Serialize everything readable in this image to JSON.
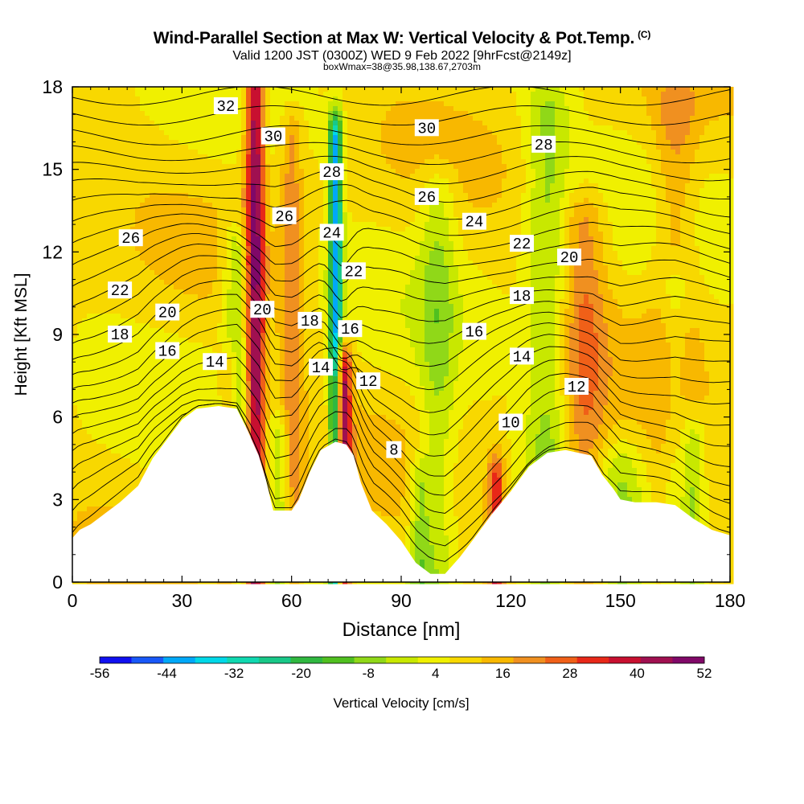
{
  "header": {
    "title": "Wind-Parallel Section at Max W: Vertical Velocity & Pot.Temp.",
    "copyright": "(C)",
    "valid_line": "Valid 1200 JST (0300Z) WED 9 Feb 2022 [9hrFcst@2149z]",
    "box_line": "boxWmax=38@35.98,138.67,2703m"
  },
  "chart_data": {
    "type": "heatmap",
    "xlabel": "Distance [nm]",
    "ylabel": "Height [Kft MSL]",
    "xlim": [
      0,
      180
    ],
    "ylim": [
      0,
      18
    ],
    "xticks": [
      0,
      30,
      60,
      90,
      120,
      150,
      180
    ],
    "yticks": [
      0,
      3,
      6,
      9,
      12,
      15,
      18
    ],
    "colorbar": {
      "label": "Vertical Velocity [cm/s]",
      "ticks": [
        -56,
        -44,
        -32,
        -20,
        -8,
        4,
        16,
        28,
        40,
        52
      ],
      "colors": [
        "#1010f0",
        "#1858f8",
        "#00a8f8",
        "#00d8e8",
        "#10d8b0",
        "#18c888",
        "#30b840",
        "#50c020",
        "#90d818",
        "#c8e800",
        "#f0f000",
        "#f8d800",
        "#f8b800",
        "#f09020",
        "#f06018",
        "#e82818",
        "#c81030",
        "#a01050",
        "#800868"
      ]
    },
    "terrain": [
      [
        0,
        1.6
      ],
      [
        2,
        1.9
      ],
      [
        5,
        2.1
      ],
      [
        9,
        2.5
      ],
      [
        13,
        2.9
      ],
      [
        18,
        3.5
      ],
      [
        22,
        4.5
      ],
      [
        26,
        5.2
      ],
      [
        30,
        5.9
      ],
      [
        34,
        6.3
      ],
      [
        40,
        6.4
      ],
      [
        45,
        6.3
      ],
      [
        48,
        5.5
      ],
      [
        51,
        4.6
      ],
      [
        53,
        3.7
      ],
      [
        55,
        2.6
      ],
      [
        60,
        2.6
      ],
      [
        62,
        3.0
      ],
      [
        65,
        4.0
      ],
      [
        68,
        4.8
      ],
      [
        72,
        5.1
      ],
      [
        75,
        5.0
      ],
      [
        77,
        4.6
      ],
      [
        79,
        3.6
      ],
      [
        82,
        2.6
      ],
      [
        86,
        2.1
      ],
      [
        90,
        1.5
      ],
      [
        94,
        0.7
      ],
      [
        98,
        0.3
      ],
      [
        102,
        0.3
      ],
      [
        106,
        0.9
      ],
      [
        110,
        1.6
      ],
      [
        115,
        2.5
      ],
      [
        120,
        3.3
      ],
      [
        125,
        4.2
      ],
      [
        130,
        4.7
      ],
      [
        135,
        4.8
      ],
      [
        142,
        4.6
      ],
      [
        145,
        3.9
      ],
      [
        148,
        3.4
      ],
      [
        150,
        3.0
      ],
      [
        154,
        2.9
      ],
      [
        160,
        2.9
      ],
      [
        165,
        2.8
      ],
      [
        170,
        2.3
      ],
      [
        175,
        1.9
      ],
      [
        180,
        1.7
      ]
    ],
    "updrafts": [
      {
        "x": 50,
        "h": 18,
        "w": 2.6,
        "v": 40
      },
      {
        "x": 74,
        "h": 7.5,
        "w": 2.2,
        "v": 40
      },
      {
        "x": 116,
        "h": 3.5,
        "w": 2.2,
        "v": 28
      },
      {
        "x": 43,
        "h": 7.5,
        "w": 3,
        "v": 16
      },
      {
        "x": 60,
        "h": 16,
        "w": 3,
        "v": 14
      },
      {
        "x": 140,
        "h": 13,
        "w": 6,
        "v": 14
      },
      {
        "x": 165,
        "h": 17,
        "w": 6,
        "v": 12
      }
    ],
    "downdrafts": [
      {
        "x": 72,
        "h": 16,
        "w": 1.8,
        "v": -48
      },
      {
        "x": 45,
        "h": 12,
        "w": 4,
        "v": -16
      },
      {
        "x": 57,
        "h": 5,
        "w": 3,
        "v": -14
      },
      {
        "x": 95,
        "h": 3.5,
        "w": 3,
        "v": -14
      },
      {
        "x": 100,
        "h": 14,
        "w": 5,
        "v": -12
      },
      {
        "x": 130,
        "h": 17,
        "w": 6,
        "v": -14
      },
      {
        "x": 165,
        "h": 10.5,
        "w": 4,
        "v": -14
      },
      {
        "x": 170,
        "h": 5,
        "w": 3,
        "v": -16
      },
      {
        "x": 150,
        "h": 4,
        "w": 6,
        "v": -10
      }
    ],
    "theta_labels": [
      {
        "text": "32",
        "x": 42,
        "y": 17.3
      },
      {
        "text": "30",
        "x": 55,
        "y": 16.2
      },
      {
        "text": "28",
        "x": 71,
        "y": 14.9
      },
      {
        "text": "30",
        "x": 97,
        "y": 16.5
      },
      {
        "text": "28",
        "x": 129,
        "y": 15.9
      },
      {
        "text": "26",
        "x": 16,
        "y": 12.5
      },
      {
        "text": "26",
        "x": 58,
        "y": 13.3
      },
      {
        "text": "24",
        "x": 71,
        "y": 12.7
      },
      {
        "text": "26",
        "x": 97,
        "y": 14.0
      },
      {
        "text": "24",
        "x": 110,
        "y": 13.1
      },
      {
        "text": "22",
        "x": 123,
        "y": 12.3
      },
      {
        "text": "20",
        "x": 136,
        "y": 11.8
      },
      {
        "text": "22",
        "x": 13,
        "y": 10.6
      },
      {
        "text": "22",
        "x": 77,
        "y": 11.3
      },
      {
        "text": "18",
        "x": 123,
        "y": 10.4
      },
      {
        "text": "20",
        "x": 26,
        "y": 9.8
      },
      {
        "text": "20",
        "x": 52,
        "y": 9.9
      },
      {
        "text": "18",
        "x": 65,
        "y": 9.5
      },
      {
        "text": "16",
        "x": 76,
        "y": 9.2
      },
      {
        "text": "16",
        "x": 110,
        "y": 9.1
      },
      {
        "text": "18",
        "x": 13,
        "y": 9.0
      },
      {
        "text": "16",
        "x": 26,
        "y": 8.4
      },
      {
        "text": "14",
        "x": 39,
        "y": 8.0
      },
      {
        "text": "14",
        "x": 68,
        "y": 7.8
      },
      {
        "text": "14",
        "x": 123,
        "y": 8.2
      },
      {
        "text": "12",
        "x": 81,
        "y": 7.3
      },
      {
        "text": "12",
        "x": 138,
        "y": 7.1
      },
      {
        "text": "10",
        "x": 120,
        "y": 5.8
      },
      {
        "text": "8",
        "x": 88,
        "y": 4.8
      }
    ]
  }
}
